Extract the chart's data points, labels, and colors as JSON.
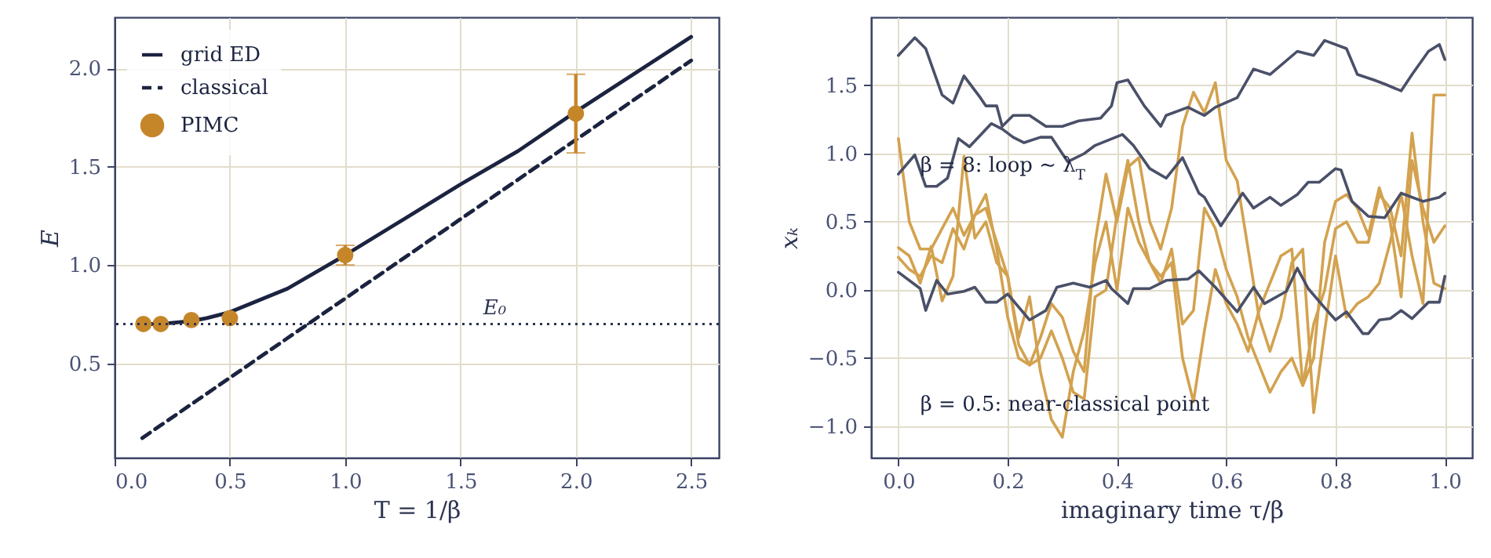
{
  "chart_data": [
    {
      "type": "line",
      "xlabel": "T = 1/β",
      "ylabel": "E",
      "xlim": [
        0.0,
        2.62
      ],
      "ylim": [
        0.02,
        2.26
      ],
      "xticks": [
        {
          "value": 0,
          "label": "0.0"
        },
        {
          "value": 0.5,
          "label": "0.5"
        },
        {
          "value": 1,
          "label": "1.0"
        },
        {
          "value": 1.5,
          "label": "1.5"
        },
        {
          "value": 2,
          "label": "2.0"
        },
        {
          "value": 2.5,
          "label": "2.5"
        }
      ],
      "yticks": [
        {
          "value": 0.5,
          "label": "0.5"
        },
        {
          "value": 1,
          "label": "1.0"
        },
        {
          "value": 1.5,
          "label": "1.5"
        },
        {
          "value": 2,
          "label": "2.0"
        }
      ],
      "grid": true,
      "legend": "top left",
      "series": [
        {
          "name": "grid ED",
          "color": "#1b2340",
          "line_style": "solid",
          "x": [
            0.125,
            0.2,
            0.333,
            0.4,
            0.5,
            0.75,
            1.0,
            1.25,
            1.5,
            1.75,
            2.0,
            2.25,
            2.5
          ],
          "values": [
            0.7,
            0.7,
            0.715,
            0.73,
            0.76,
            0.88,
            1.05,
            1.23,
            1.41,
            1.58,
            1.78,
            1.97,
            2.16
          ]
        },
        {
          "name": "classical",
          "color": "#1b2340",
          "line_style": "dashed",
          "x": [
            0.12,
            2.5
          ],
          "values": [
            0.12,
            2.04
          ]
        },
        {
          "name": "PIMC",
          "type": "scatter",
          "color": "#c5862a",
          "marker": "circle",
          "x": [
            0.125,
            0.2,
            0.333,
            0.5,
            1.0,
            2.0
          ],
          "values": [
            0.7,
            0.7,
            0.72,
            0.73,
            1.05,
            1.77
          ],
          "errors": [
            null,
            null,
            null,
            null,
            0.05,
            0.2
          ]
        }
      ],
      "ref_lines": [
        {
          "axis": "y",
          "value": 0.7,
          "label": "E₀",
          "color": "#2b3350",
          "line_style": "dotted"
        }
      ]
    },
    {
      "type": "line",
      "xlabel": "imaginary time τ/β",
      "ylabel": "xₖ",
      "xlim": [
        -0.05,
        1.05
      ],
      "ylim": [
        -1.23,
        2.0
      ],
      "xticks": [
        {
          "value": 0,
          "label": "0.0"
        },
        {
          "value": 0.2,
          "label": "0.2"
        },
        {
          "value": 0.4,
          "label": "0.4"
        },
        {
          "value": 0.6,
          "label": "0.6"
        },
        {
          "value": 0.8,
          "label": "0.8"
        },
        {
          "value": 1,
          "label": "1.0"
        }
      ],
      "yticks": [
        {
          "value": -1,
          "label": "−1.0"
        },
        {
          "value": -0.5,
          "label": "−0.5"
        },
        {
          "value": 0,
          "label": "0.0"
        },
        {
          "value": 0.5,
          "label": "0.5"
        },
        {
          "value": 1,
          "label": "1.0"
        },
        {
          "value": 1.5,
          "label": "1.5"
        }
      ],
      "grid": true,
      "annotations": [
        "β = 8: loop ∼ λ$_{T}$",
        "β = 0.5: near-classical point"
      ],
      "series": [
        {
          "color": "#d3a24f",
          "x": [
            0,
            0.02,
            0.04,
            0.06,
            0.08,
            0.1,
            0.12,
            0.14,
            0.16,
            0.18,
            0.2,
            0.22,
            0.24,
            0.26,
            0.28,
            0.3,
            0.32,
            0.34,
            0.36,
            0.38,
            0.4,
            0.42,
            0.44,
            0.46,
            0.48,
            0.5,
            0.52,
            0.54,
            0.56,
            0.58,
            0.6,
            0.62,
            0.64,
            0.66,
            0.68,
            0.7,
            0.72,
            0.74,
            0.76,
            0.78,
            0.8,
            0.82,
            0.84,
            0.86,
            0.88,
            0.9,
            0.92,
            0.94,
            0.96,
            0.98,
            1.0
          ],
          "values": [
            1.11,
            0.5,
            0.3,
            0.3,
            0.45,
            0.6,
            0.4,
            0.55,
            0.7,
            0.3,
            -0.2,
            -0.5,
            -0.55,
            -0.35,
            -0.1,
            -0.2,
            -0.45,
            -0.6,
            0.35,
            0.85,
            0.5,
            0.9,
            0.97,
            0.5,
            0.3,
            0.6,
            1.2,
            1.45,
            1.3,
            1.52,
            0.95,
            0.8,
            0.3,
            -0.2,
            -0.45,
            -0.2,
            0.2,
            0.3,
            -0.9,
            -0.3,
            0.25,
            -0.2,
            -0.1,
            -0.05,
            0.05,
            0.35,
            0.7,
            0.25,
            -0.1,
            1.43,
            1.43
          ]
        },
        {
          "color": "#d3a24f",
          "x": [
            0,
            0.02,
            0.04,
            0.06,
            0.08,
            0.1,
            0.12,
            0.14,
            0.16,
            0.18,
            0.2,
            0.22,
            0.24,
            0.26,
            0.28,
            0.3,
            0.32,
            0.34,
            0.36,
            0.38,
            0.4,
            0.42,
            0.44,
            0.46,
            0.48,
            0.5,
            0.52,
            0.54,
            0.56,
            0.58,
            0.6,
            0.62,
            0.64,
            0.66,
            0.68,
            0.7,
            0.72,
            0.74,
            0.76,
            0.78,
            0.8,
            0.82,
            0.84,
            0.86,
            0.88,
            0.9,
            0.92,
            0.94,
            0.96,
            0.98,
            1.0
          ],
          "values": [
            0.31,
            0.25,
            0.05,
            0.32,
            -0.08,
            0.1,
            0.98,
            0.38,
            0.5,
            0.2,
            0.1,
            -0.35,
            -0.05,
            -0.6,
            -0.95,
            -1.08,
            -0.6,
            -0.3,
            0.2,
            0.5,
            0.0,
            0.6,
            0.35,
            0.2,
            0.1,
            0.2,
            -0.5,
            -0.82,
            -0.3,
            0.15,
            -0.1,
            -0.25,
            -0.45,
            -0.15,
            0.05,
            0.25,
            0.3,
            -0.7,
            -0.5,
            0.35,
            0.65,
            0.7,
            0.6,
            0.4,
            0.75,
            0.5,
            -0.05,
            0.95,
            0.6,
            0.35,
            0.47
          ]
        },
        {
          "color": "#d3a24f",
          "x": [
            0,
            0.02,
            0.04,
            0.06,
            0.08,
            0.1,
            0.12,
            0.14,
            0.16,
            0.18,
            0.2,
            0.22,
            0.24,
            0.26,
            0.28,
            0.3,
            0.32,
            0.34,
            0.36,
            0.38,
            0.4,
            0.42,
            0.44,
            0.46,
            0.48,
            0.5,
            0.52,
            0.54,
            0.56,
            0.58,
            0.6,
            0.62,
            0.64,
            0.66,
            0.68,
            0.7,
            0.72,
            0.74,
            0.76,
            0.78,
            0.8,
            0.82,
            0.84,
            0.86,
            0.88,
            0.9,
            0.92,
            0.94,
            0.96,
            0.98,
            1.0
          ],
          "values": [
            0.24,
            0.15,
            0.1,
            0.25,
            0.2,
            0.45,
            0.3,
            0.55,
            0.6,
            0.35,
            0.1,
            -0.4,
            -0.55,
            -0.5,
            -0.3,
            -0.5,
            -0.75,
            -0.8,
            -0.05,
            0.0,
            0.55,
            0.95,
            0.5,
            0.2,
            0.05,
            0.3,
            -0.25,
            -0.15,
            0.6,
            0.45,
            0.15,
            -0.05,
            -0.35,
            -0.55,
            -0.75,
            -0.6,
            -0.5,
            -0.7,
            -0.25,
            0.0,
            0.45,
            0.5,
            0.35,
            0.35,
            0.7,
            0.6,
            0.25,
            1.15,
            0.5,
            0.05,
            0.01
          ]
        },
        {
          "color": "#4a5068",
          "x": [
            0.0,
            0.03,
            0.05,
            0.08,
            0.1,
            0.12,
            0.15,
            0.16,
            0.18,
            0.19,
            0.21,
            0.24,
            0.27,
            0.3,
            0.33,
            0.37,
            0.39,
            0.4,
            0.42,
            0.45,
            0.48,
            0.49,
            0.53,
            0.56,
            0.58,
            0.62,
            0.65,
            0.68,
            0.73,
            0.76,
            0.78,
            0.82,
            0.84,
            0.87,
            0.89,
            0.92,
            0.94,
            0.97,
            0.99,
            1.0
          ],
          "values": [
            1.72,
            1.85,
            1.77,
            1.43,
            1.37,
            1.57,
            1.41,
            1.35,
            1.35,
            1.2,
            1.28,
            1.28,
            1.2,
            1.2,
            1.24,
            1.26,
            1.35,
            1.52,
            1.54,
            1.35,
            1.2,
            1.28,
            1.34,
            1.28,
            1.34,
            1.41,
            1.62,
            1.58,
            1.75,
            1.72,
            1.83,
            1.77,
            1.58,
            1.54,
            1.51,
            1.46,
            1.58,
            1.75,
            1.8,
            1.69
          ]
        },
        {
          "color": "#4a5068",
          "x": [
            0.0,
            0.03,
            0.05,
            0.07,
            0.09,
            0.11,
            0.13,
            0.17,
            0.19,
            0.21,
            0.23,
            0.26,
            0.28,
            0.31,
            0.34,
            0.36,
            0.41,
            0.43,
            0.46,
            0.49,
            0.52,
            0.55,
            0.56,
            0.59,
            0.63,
            0.65,
            0.68,
            0.7,
            0.73,
            0.75,
            0.77,
            0.8,
            0.81,
            0.83,
            0.86,
            0.89,
            0.92,
            0.96,
            0.99,
            1.0
          ],
          "values": [
            0.85,
            0.99,
            0.76,
            0.76,
            0.82,
            1.11,
            1.05,
            1.22,
            1.18,
            1.12,
            1.08,
            1.12,
            1.12,
            0.94,
            1.0,
            1.06,
            1.14,
            1.06,
            0.89,
            0.82,
            0.97,
            0.71,
            0.68,
            0.47,
            0.71,
            0.6,
            0.68,
            0.62,
            0.7,
            0.79,
            0.79,
            0.89,
            0.88,
            0.65,
            0.54,
            0.53,
            0.71,
            0.65,
            0.68,
            0.71
          ]
        },
        {
          "color": "#4a5068",
          "x": [
            0.0,
            0.04,
            0.05,
            0.07,
            0.09,
            0.12,
            0.14,
            0.16,
            0.18,
            0.2,
            0.24,
            0.27,
            0.29,
            0.32,
            0.35,
            0.38,
            0.39,
            0.42,
            0.43,
            0.46,
            0.49,
            0.53,
            0.55,
            0.58,
            0.62,
            0.65,
            0.67,
            0.71,
            0.73,
            0.75,
            0.78,
            0.8,
            0.82,
            0.85,
            0.86,
            0.88,
            0.9,
            0.92,
            0.94,
            0.97,
            0.99,
            1.0
          ],
          "values": [
            0.13,
            0.01,
            -0.15,
            0.07,
            -0.03,
            -0.01,
            0.02,
            -0.09,
            -0.09,
            -0.03,
            -0.22,
            -0.15,
            0.02,
            0.05,
            0.02,
            0.07,
            0.01,
            -0.1,
            0.01,
            0.01,
            0.07,
            0.08,
            0.14,
            0.02,
            -0.16,
            0.02,
            -0.1,
            -0.01,
            0.16,
            0.01,
            -0.13,
            -0.22,
            -0.16,
            -0.32,
            -0.32,
            -0.22,
            -0.21,
            -0.15,
            -0.21,
            -0.09,
            -0.09,
            0.1
          ]
        }
      ]
    }
  ]
}
